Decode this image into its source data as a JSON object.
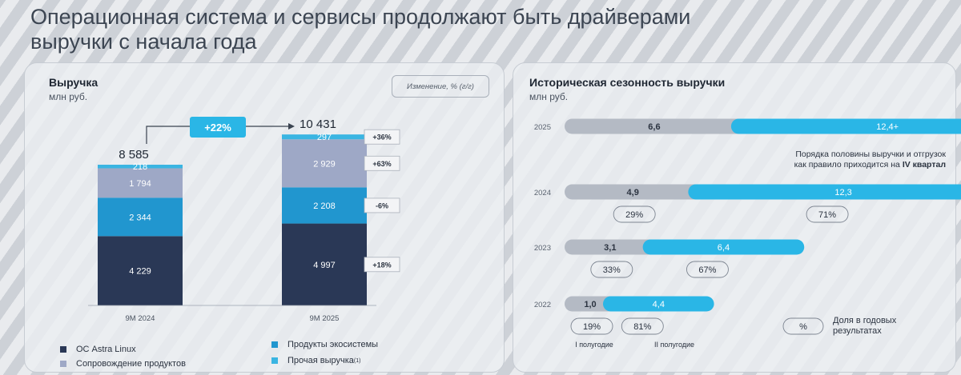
{
  "page_title": "Операционная система и сервисы продолжают быть драйверами выручки с начала года",
  "left_panel": {
    "title": "Выручка",
    "unit": "млн руб.",
    "change_label": "Изменение, % (г/г)"
  },
  "right_panel": {
    "title": "Историческая сезонность выручки",
    "unit": "млн руб.",
    "note_line1": "Порядка половины выручки и отгрузок",
    "note_line2": "как правило приходится на",
    "note_bold": "IV квартал",
    "legend_h1": "I полугодие",
    "legend_h2": "II полугодие",
    "legend_pct_symbol": "%",
    "legend_pct_line1": "Доля в годовых",
    "legend_pct_line2": "результатах"
  },
  "legend": [
    {
      "label": "ОС Astra Linux",
      "color": "#2a3856"
    },
    {
      "label": "Сопровождение продуктов",
      "color": "#9ea8c6"
    },
    {
      "label": "Продукты экосистемы",
      "color": "#2196cf"
    },
    {
      "label": "Прочая выручка",
      "sup": "(1)",
      "color": "#3ab5e2"
    }
  ],
  "chart_data": [
    {
      "type": "bar",
      "stacked": true,
      "title": "Выручка",
      "ylabel": "млн руб.",
      "categories": [
        "9М 2024",
        "9М 2025"
      ],
      "totals": [
        "8 585",
        "10 431"
      ],
      "growth_label": "+22%",
      "series": [
        {
          "name": "ОС Astra Linux",
          "values": [
            4229,
            4997
          ],
          "labels": [
            "4 229",
            "4 997"
          ],
          "change": "+18%",
          "color": "#2a3856"
        },
        {
          "name": "Продукты экосистемы",
          "values": [
            2344,
            2208
          ],
          "labels": [
            "2 344",
            "2 208"
          ],
          "change": "-6%",
          "color": "#2196cf"
        },
        {
          "name": "Сопровождение продуктов",
          "values": [
            1794,
            2929
          ],
          "labels": [
            "1 794",
            "2 929"
          ],
          "change": "+63%",
          "color": "#9ea8c6"
        },
        {
          "name": "Прочая выручка",
          "values": [
            218,
            297
          ],
          "labels": [
            "218",
            "297"
          ],
          "change": "+36%",
          "color": "#3ab5e2"
        }
      ]
    },
    {
      "type": "bar",
      "orientation": "horizontal",
      "stacked": true,
      "title": "Историческая сезонность выручки",
      "ylabel": "млн руб.",
      "categories": [
        "2025",
        "2024",
        "2023",
        "2022"
      ],
      "series": [
        {
          "name": "I полугодие",
          "values": [
            6.6,
            4.9,
            3.1,
            1.0
          ],
          "labels": [
            "6,6",
            "4,9",
            "3,1",
            "1,0"
          ],
          "pct": [
            "",
            "29%",
            "33%",
            "19%"
          ],
          "color": "#b4bac4"
        },
        {
          "name": "II полугодие",
          "values": [
            12.4,
            12.3,
            6.4,
            4.4
          ],
          "labels": [
            "12,4+",
            "12,3",
            "6,4",
            "4,4"
          ],
          "pct": [
            "",
            "71%",
            "67%",
            "81%"
          ],
          "color": "#2ab6e6"
        }
      ]
    }
  ]
}
